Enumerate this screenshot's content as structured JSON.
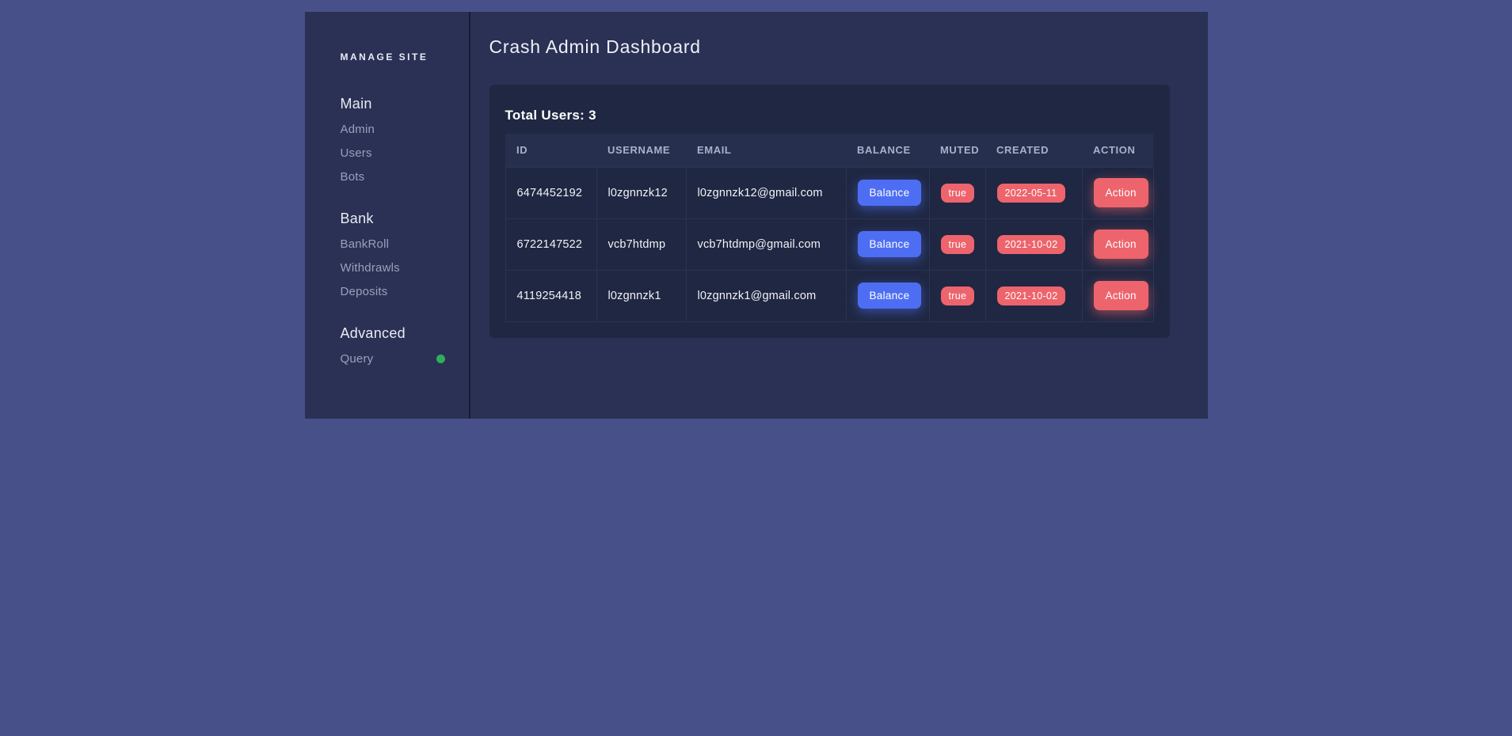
{
  "colors": {
    "page_bg": "#475089",
    "window_bg": "#2a3154",
    "card_bg": "#1f2742",
    "table_header_bg": "#272f4e",
    "accent_blue": "#4d6ef3",
    "accent_red": "#ee646c",
    "status_green": "#2fae5c"
  },
  "sidebar": {
    "brand": "MANAGE SITE",
    "sections": [
      {
        "header": "Main",
        "items": [
          "Admin",
          "Users",
          "Bots"
        ]
      },
      {
        "header": "Bank",
        "items": [
          "BankRoll",
          "Withdrawls",
          "Deposits"
        ]
      },
      {
        "header": "Advanced",
        "items": [
          "Query"
        ]
      }
    ],
    "query_status_icon": "green-dot"
  },
  "main": {
    "title": "Crash Admin Dashboard",
    "total_users_label": "Total Users: 3",
    "table": {
      "headers": [
        "ID",
        "USERNAME",
        "EMAIL",
        "BALANCE",
        "MUTED",
        "CREATED",
        "ACTION"
      ],
      "rows": [
        {
          "id": "6474452192",
          "username": "l0zgnnzk12",
          "email": "l0zgnnzk12@gmail.com",
          "balance_label": "Balance",
          "muted": "true",
          "created": "2022-05-11",
          "action_label": "Action"
        },
        {
          "id": "6722147522",
          "username": "vcb7htdmp",
          "email": "vcb7htdmp@gmail.com",
          "balance_label": "Balance",
          "muted": "true",
          "created": "2021-10-02",
          "action_label": "Action"
        },
        {
          "id": "4119254418",
          "username": "l0zgnnzk1",
          "email": "l0zgnnzk1@gmail.com",
          "balance_label": "Balance",
          "muted": "true",
          "created": "2021-10-02",
          "action_label": "Action"
        }
      ]
    }
  }
}
